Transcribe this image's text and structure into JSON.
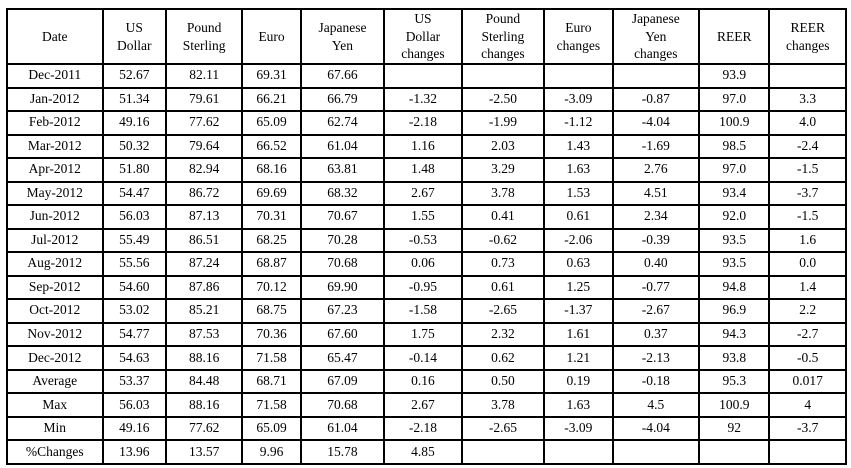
{
  "chart_data": {
    "type": "table",
    "columns": [
      "Date",
      "US\nDollar",
      "Pound\nSterling",
      "Euro",
      "Japanese\nYen",
      "US\nDollar\nchanges",
      "Pound\nSterling\nchanges",
      "Euro\nchanges",
      "Japanese\nYen\nchanges",
      "REER",
      "REER\nchanges"
    ],
    "rows": [
      [
        "Dec-2011",
        "52.67",
        "82.11",
        "69.31",
        "67.66",
        "",
        "",
        "",
        "",
        "93.9",
        ""
      ],
      [
        "Jan-2012",
        "51.34",
        "79.61",
        "66.21",
        "66.79",
        "-1.32",
        "-2.50",
        "-3.09",
        "-0.87",
        "97.0",
        "3.3"
      ],
      [
        "Feb-2012",
        "49.16",
        "77.62",
        "65.09",
        "62.74",
        "-2.18",
        "-1.99",
        "-1.12",
        "-4.04",
        "100.9",
        "4.0"
      ],
      [
        "Mar-2012",
        "50.32",
        "79.64",
        "66.52",
        "61.04",
        "1.16",
        "2.03",
        "1.43",
        "-1.69",
        "98.5",
        "-2.4"
      ],
      [
        "Apr-2012",
        "51.80",
        "82.94",
        "68.16",
        "63.81",
        "1.48",
        "3.29",
        "1.63",
        "2.76",
        "97.0",
        "-1.5"
      ],
      [
        "May-2012",
        "54.47",
        "86.72",
        "69.69",
        "68.32",
        "2.67",
        "3.78",
        "1.53",
        "4.51",
        "93.4",
        "-3.7"
      ],
      [
        "Jun-2012",
        "56.03",
        "87.13",
        "70.31",
        "70.67",
        "1.55",
        "0.41",
        "0.61",
        "2.34",
        "92.0",
        "-1.5"
      ],
      [
        "Jul-2012",
        "55.49",
        "86.51",
        "68.25",
        "70.28",
        "-0.53",
        "-0.62",
        "-2.06",
        "-0.39",
        "93.5",
        "1.6"
      ],
      [
        "Aug-2012",
        "55.56",
        "87.24",
        "68.87",
        "70.68",
        "0.06",
        "0.73",
        "0.63",
        "0.40",
        "93.5",
        "0.0"
      ],
      [
        "Sep-2012",
        "54.60",
        "87.86",
        "70.12",
        "69.90",
        "-0.95",
        "0.61",
        "1.25",
        "-0.77",
        "94.8",
        "1.4"
      ],
      [
        "Oct-2012",
        "53.02",
        "85.21",
        "68.75",
        "67.23",
        "-1.58",
        "-2.65",
        "-1.37",
        "-2.67",
        "96.9",
        "2.2"
      ],
      [
        "Nov-2012",
        "54.77",
        "87.53",
        "70.36",
        "67.60",
        "1.75",
        "2.32",
        "1.61",
        "0.37",
        "94.3",
        "-2.7"
      ],
      [
        "Dec-2012",
        "54.63",
        "88.16",
        "71.58",
        "65.47",
        "-0.14",
        "0.62",
        "1.21",
        "-2.13",
        "93.8",
        "-0.5"
      ],
      [
        "Average",
        "53.37",
        "84.48",
        "68.71",
        "67.09",
        "0.16",
        "0.50",
        "0.19",
        "-0.18",
        "95.3",
        "0.017"
      ],
      [
        "Max",
        "56.03",
        "88.16",
        "71.58",
        "70.68",
        "2.67",
        "3.78",
        "1.63",
        "4.5",
        "100.9",
        "4"
      ],
      [
        "Min",
        "49.16",
        "77.62",
        "65.09",
        "61.04",
        "-2.18",
        "-2.65",
        "-3.09",
        "-4.04",
        "92",
        "-3.7"
      ],
      [
        "%Changes",
        "13.96",
        "13.57",
        "9.96",
        "15.78",
        "4.85",
        "",
        "",
        "",
        "",
        ""
      ]
    ]
  }
}
